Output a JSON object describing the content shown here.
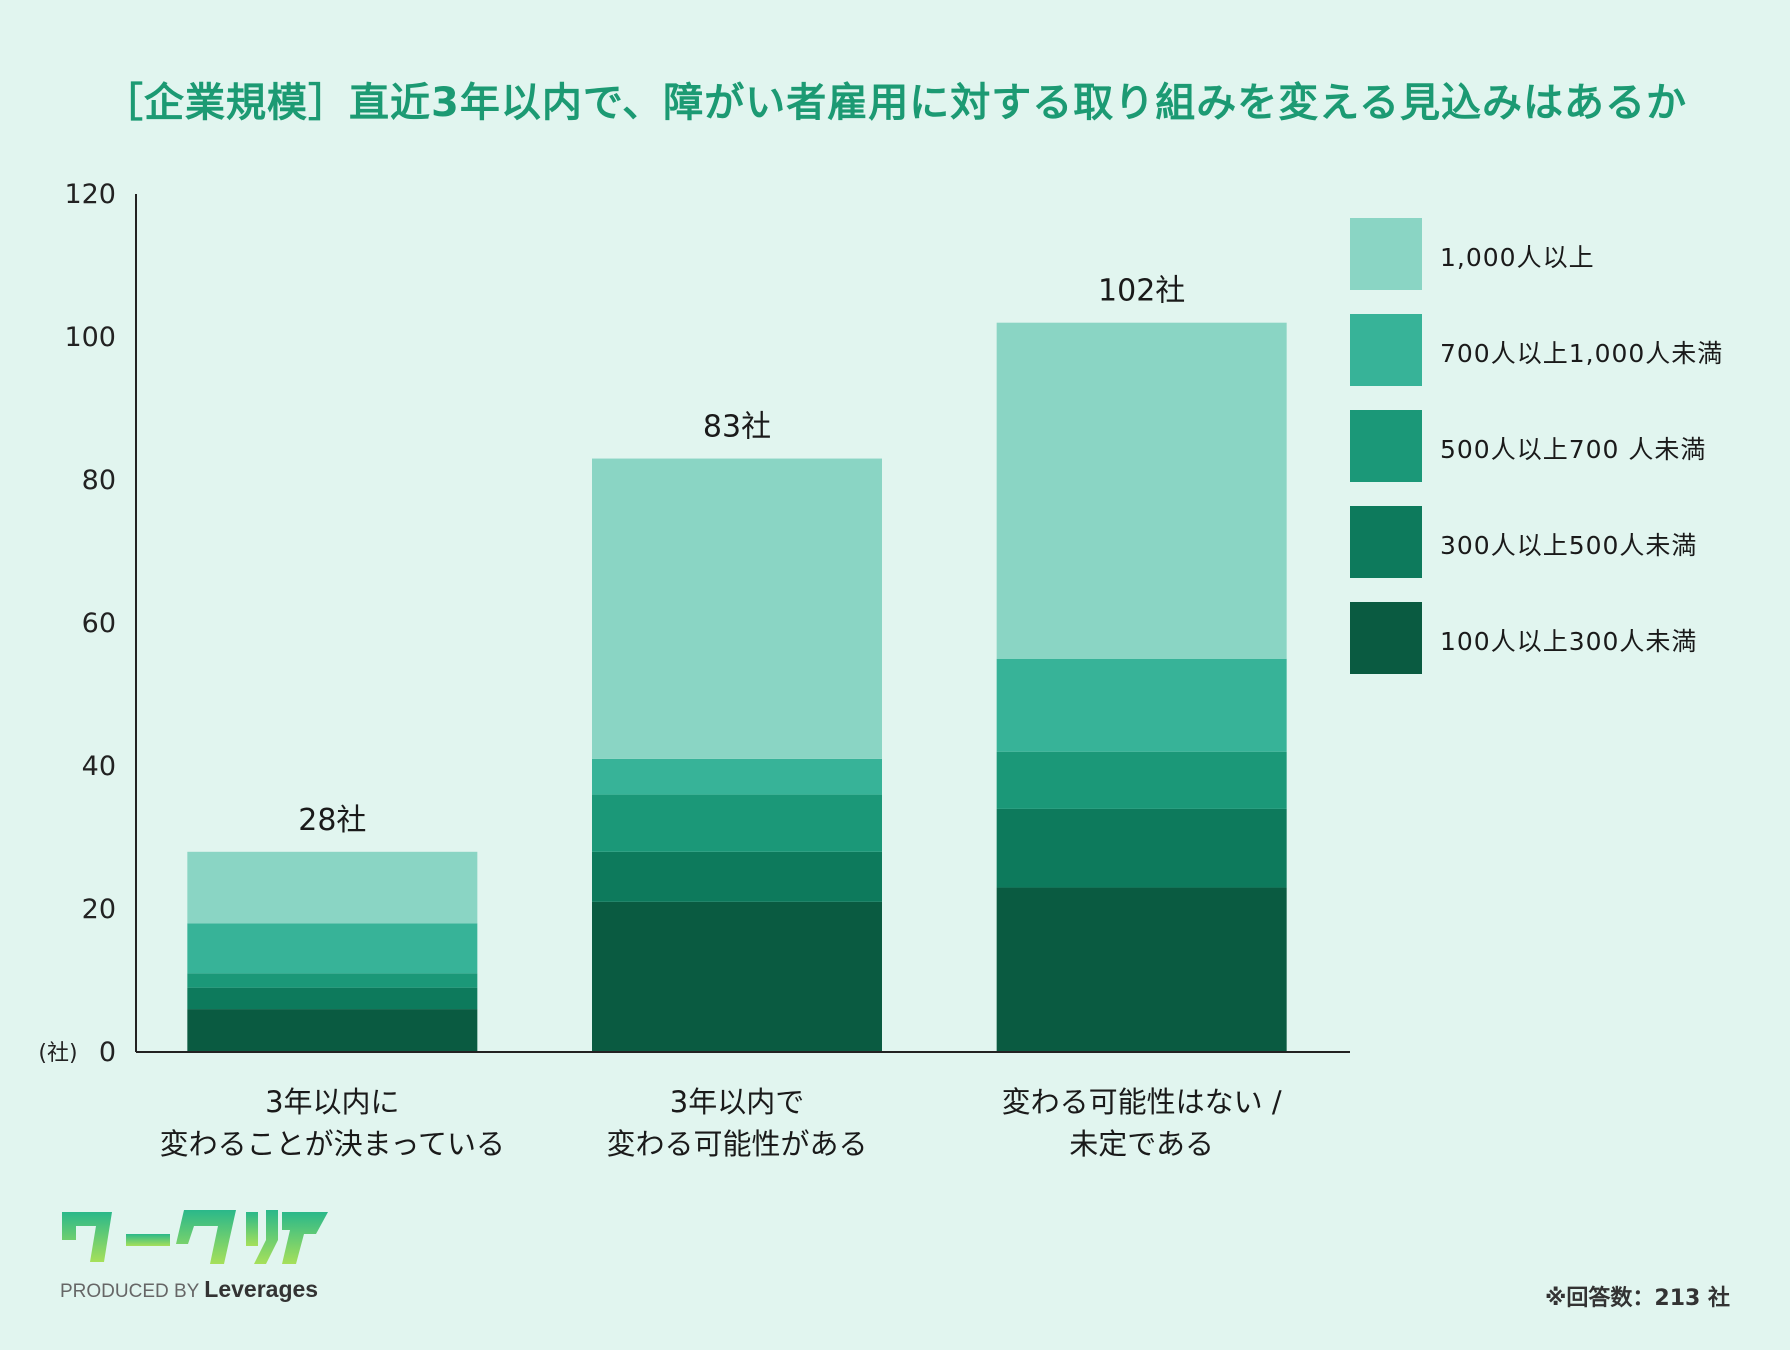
{
  "title": "［企業規模］直近3年以内で、障がい者雇用に対する取り組みを変える見込みはあるか",
  "chart_data": {
    "type": "bar",
    "stacked": true,
    "categories": [
      [
        "3年以内に",
        "変わることが決まっている"
      ],
      [
        "3年以内で",
        "変わる可能性がある"
      ],
      [
        "変わる可能性はない /",
        "未定である"
      ]
    ],
    "series": [
      {
        "name": "100人以上300人未満",
        "color": "#0a5b41",
        "values": [
          6,
          21,
          23
        ]
      },
      {
        "name": "300人以上500人未満",
        "color": "#0d7a5c",
        "values": [
          3,
          7,
          11
        ]
      },
      {
        "name": "500人以上700 人未満",
        "color": "#1b9878",
        "values": [
          2,
          8,
          8
        ]
      },
      {
        "name": "700人以上1,000人未満",
        "color": "#37b398",
        "values": [
          7,
          5,
          13
        ]
      },
      {
        "name": "1,000人以上",
        "color": "#8ad5c4",
        "values": [
          10,
          42,
          47
        ]
      }
    ],
    "totals": [
      "28社",
      "83社",
      "102社"
    ],
    "ylim": [
      0,
      120
    ],
    "yticks": [
      "0",
      "20",
      "40",
      "60",
      "80",
      "100",
      "120"
    ],
    "ylabel": "(社)",
    "legend_position": "right"
  },
  "logo": {
    "text": "ワークリア",
    "produced_by": "PRODUCED BY",
    "brand": "Leverages"
  },
  "note": "※回答数：213 社"
}
